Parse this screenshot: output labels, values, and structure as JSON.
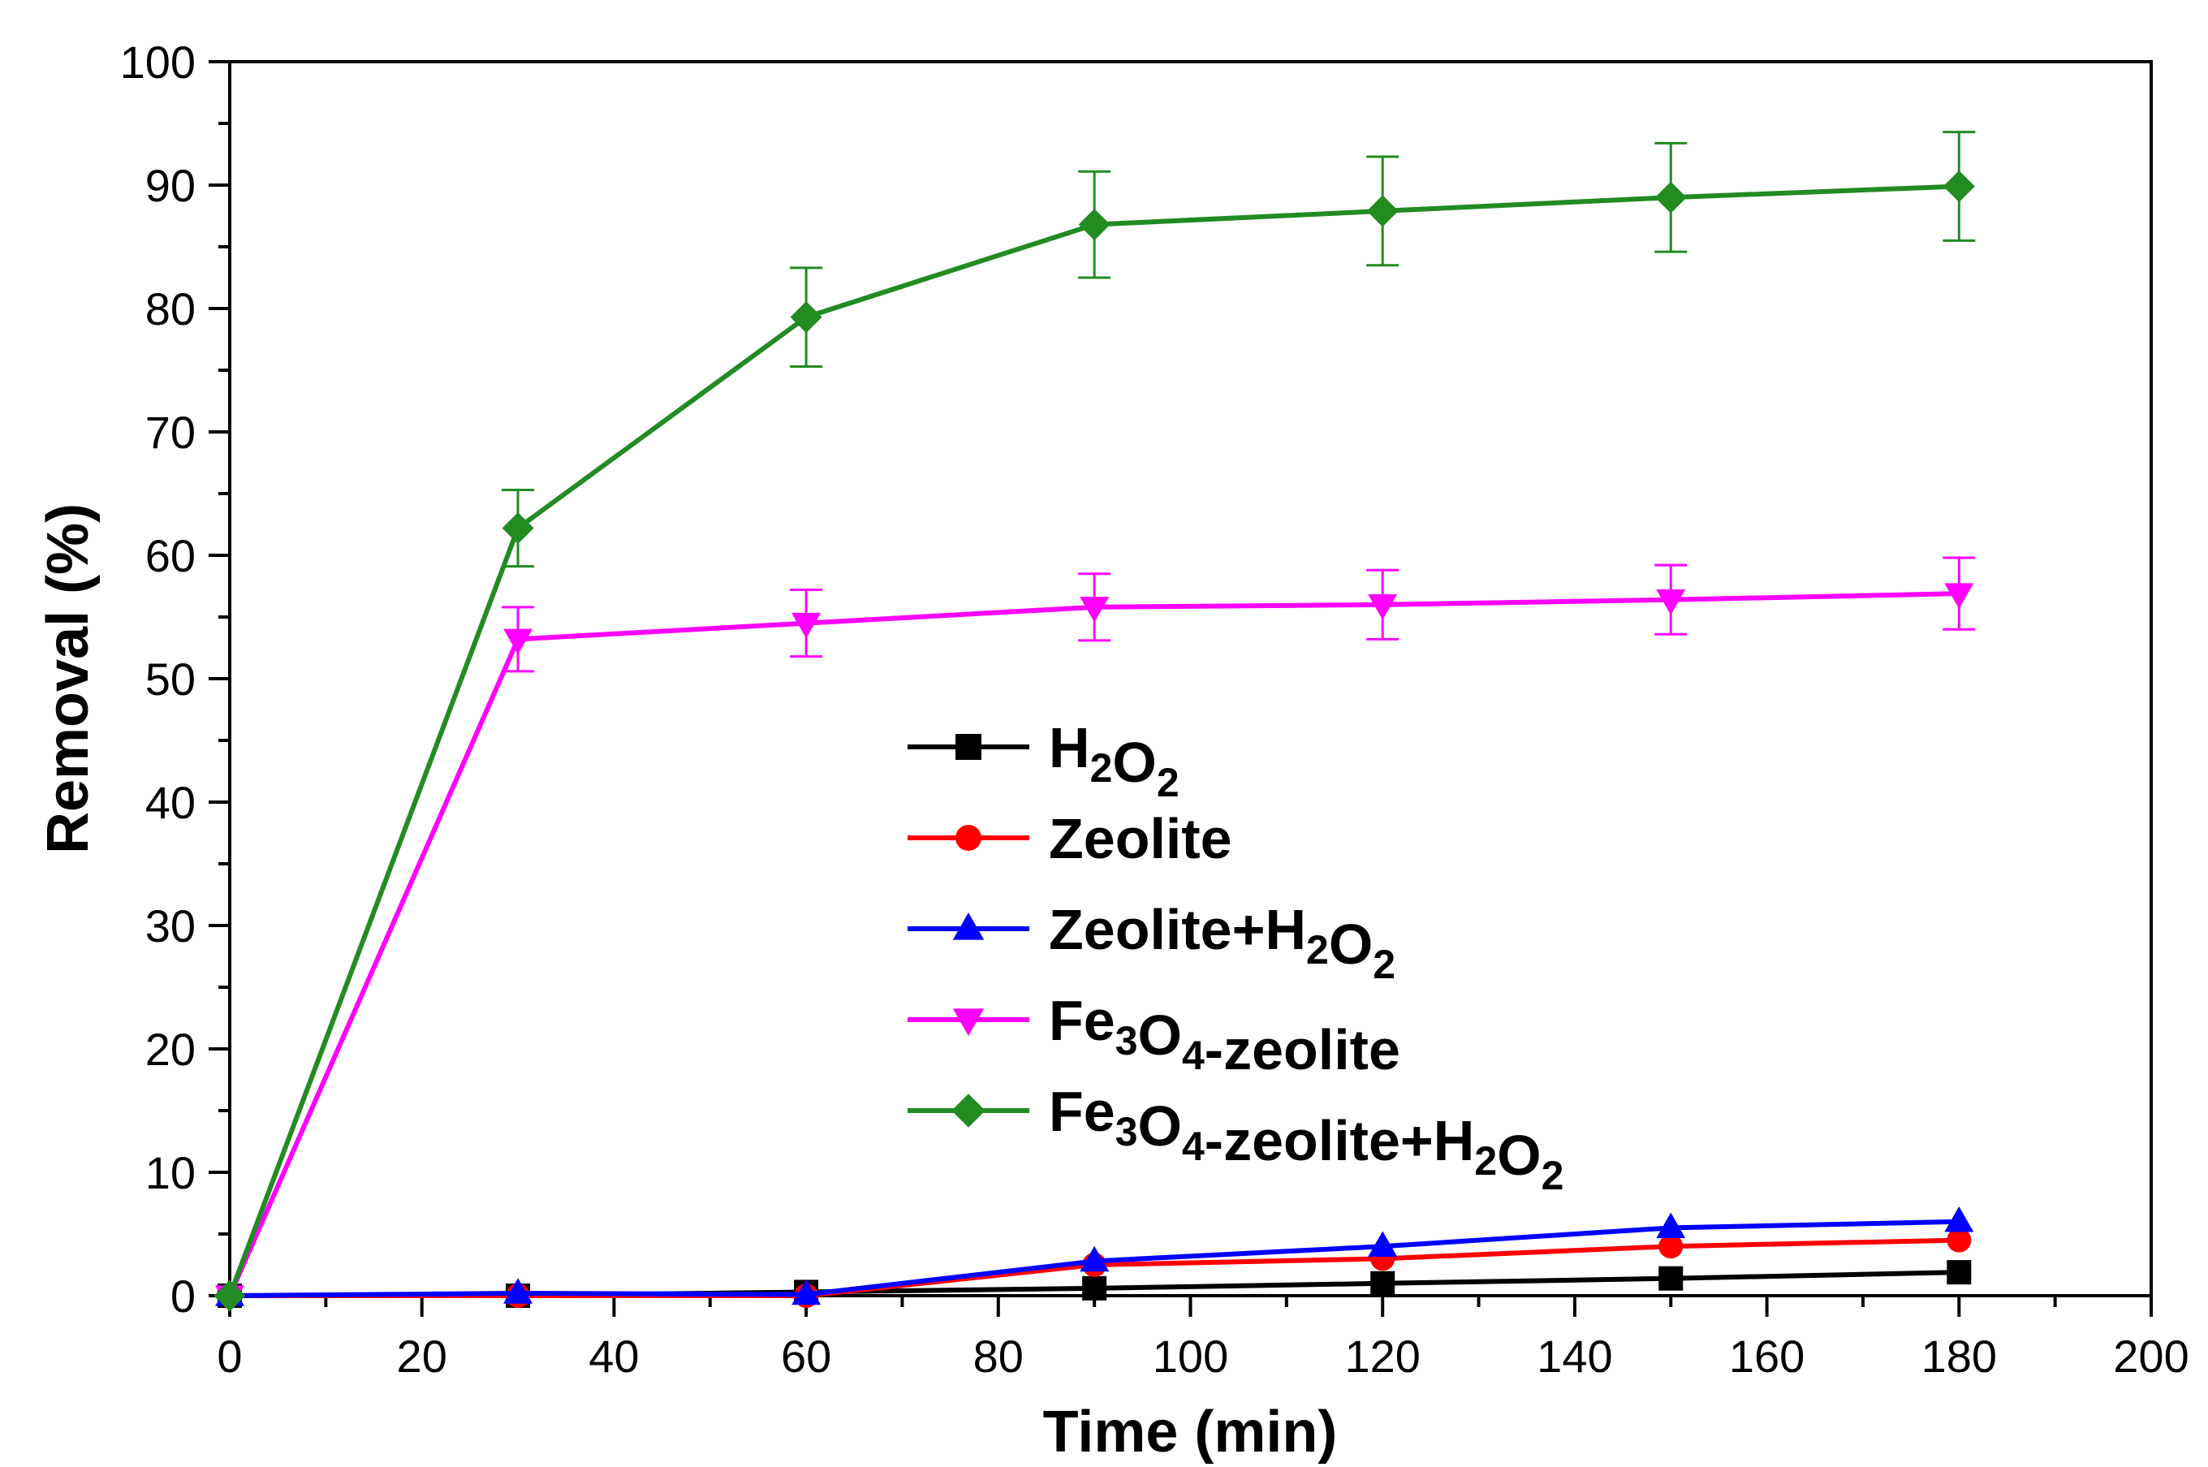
{
  "chart_data": {
    "type": "line",
    "title": "",
    "xlabel": "Time (min)",
    "ylabel": "Removal (%)",
    "xlim": [
      0,
      200
    ],
    "ylim": [
      0,
      100
    ],
    "xticks": [
      "0",
      "20",
      "40",
      "60",
      "80",
      "100",
      "120",
      "140",
      "160",
      "180",
      "200"
    ],
    "yticks": [
      "0",
      "10",
      "20",
      "30",
      "40",
      "50",
      "60",
      "70",
      "80",
      "90",
      "100"
    ],
    "grid": false,
    "legend_position": "center-right",
    "x": [
      0,
      30,
      60,
      90,
      120,
      150,
      180
    ],
    "series": [
      {
        "name": "H2O2",
        "label_parts": [
          [
            "H",
            ""
          ],
          [
            "2",
            "sub"
          ],
          [
            "O",
            ""
          ],
          [
            "2",
            "sub"
          ]
        ],
        "color": "#000000",
        "marker": "square",
        "values": [
          0,
          0,
          0.3,
          0.6,
          1.0,
          1.4,
          1.9
        ],
        "errors": []
      },
      {
        "name": "Zeolite",
        "label_parts": [
          [
            "Zeolite",
            ""
          ]
        ],
        "color": "#ff0000",
        "marker": "circle",
        "values": [
          0,
          0,
          0,
          2.5,
          3.0,
          4.0,
          4.5
        ],
        "errors": []
      },
      {
        "name": "Zeolite+H2O2",
        "label_parts": [
          [
            "Zeolite+H",
            ""
          ],
          [
            "2",
            "sub"
          ],
          [
            "O",
            ""
          ],
          [
            "2",
            "sub"
          ]
        ],
        "color": "#0000ff",
        "marker": "triangle-up",
        "values": [
          0,
          0.2,
          0.1,
          2.8,
          4.0,
          5.5,
          6.0
        ],
        "errors": []
      },
      {
        "name": "Fe3O4-zeolite",
        "label_parts": [
          [
            "Fe",
            ""
          ],
          [
            "3",
            "sub"
          ],
          [
            "O",
            ""
          ],
          [
            "4",
            "sub"
          ],
          [
            "-zeolite",
            ""
          ]
        ],
        "color": "#ff00ff",
        "marker": "triangle-down",
        "values": [
          0,
          53.2,
          54.5,
          55.8,
          56.0,
          56.4,
          56.9
        ],
        "errors": [
          0,
          2.6,
          2.7,
          2.7,
          2.8,
          2.8,
          2.9
        ]
      },
      {
        "name": "Fe3O4-zeolite+H2O2",
        "label_parts": [
          [
            "Fe",
            ""
          ],
          [
            "3",
            "sub"
          ],
          [
            "O",
            ""
          ],
          [
            "4",
            "sub"
          ],
          [
            "-zeolite+H",
            ""
          ],
          [
            "2",
            "sub"
          ],
          [
            "O",
            ""
          ],
          [
            "2",
            "sub"
          ]
        ],
        "color": "#228b22",
        "marker": "diamond",
        "values": [
          0,
          62.2,
          79.3,
          86.8,
          87.9,
          89.0,
          89.9
        ],
        "errors": [
          0,
          3.1,
          4.0,
          4.3,
          4.4,
          4.4,
          4.4
        ]
      }
    ]
  }
}
